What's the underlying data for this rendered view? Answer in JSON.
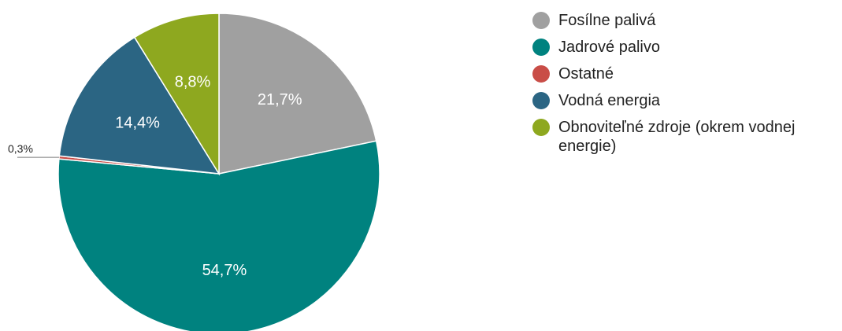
{
  "chart_data": {
    "type": "pie",
    "categories": [
      "Fosílne palivá",
      "Jadrové palivo",
      "Ostatné",
      "Vodná energia",
      "Obnoviteľné zdroje (okrem vodnej energie)"
    ],
    "values": [
      21.7,
      54.7,
      0.3,
      14.4,
      8.8
    ],
    "labels": [
      "21,7%",
      "54,7%",
      "0,3%",
      "14,4%",
      "8,8%"
    ],
    "colors": [
      "#a0a0a0",
      "#00827f",
      "#c94d47",
      "#2b6583",
      "#8ea81f"
    ],
    "legend_position": "right",
    "title": ""
  },
  "legend": {
    "items": [
      {
        "label": "Fosílne palivá",
        "color": "#a0a0a0"
      },
      {
        "label": "Jadrové palivo",
        "color": "#00827f"
      },
      {
        "label": "Ostatné",
        "color": "#c94d47"
      },
      {
        "label": "Vodná energia",
        "color": "#2b6583"
      },
      {
        "label": "Obnoviteľné zdroje (okrem vodnej energie)",
        "color": "#8ea81f"
      }
    ]
  }
}
